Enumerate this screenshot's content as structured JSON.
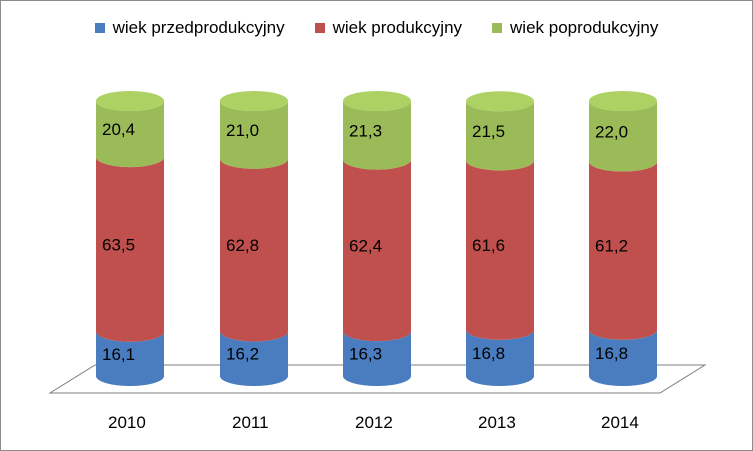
{
  "chart_data": {
    "type": "bar",
    "stacked": true,
    "style": "3d-cylinder",
    "categories": [
      "2010",
      "2011",
      "2012",
      "2013",
      "2014"
    ],
    "series": [
      {
        "name": "wiek przedprodukcyjny",
        "color": "#4a7dc0",
        "values": [
          16.1,
          16.2,
          16.3,
          16.8,
          16.8
        ],
        "labels": [
          "16,1",
          "16,2",
          "16,3",
          "16,8",
          "16,8"
        ]
      },
      {
        "name": "wiek produkcyjny",
        "color": "#c0504d",
        "values": [
          63.5,
          62.8,
          62.4,
          61.6,
          61.2
        ],
        "labels": [
          "63,5",
          "62,8",
          "62,4",
          "61,6",
          "61,2"
        ]
      },
      {
        "name": "wiek poprodukcyjny",
        "color": "#9bbb59",
        "values": [
          20.4,
          21.0,
          21.3,
          21.5,
          22.0
        ],
        "labels": [
          "20,4",
          "21,0",
          "21,3",
          "21,5",
          "22,0"
        ]
      }
    ],
    "legend_position": "top",
    "ylim": [
      0,
      100
    ]
  }
}
